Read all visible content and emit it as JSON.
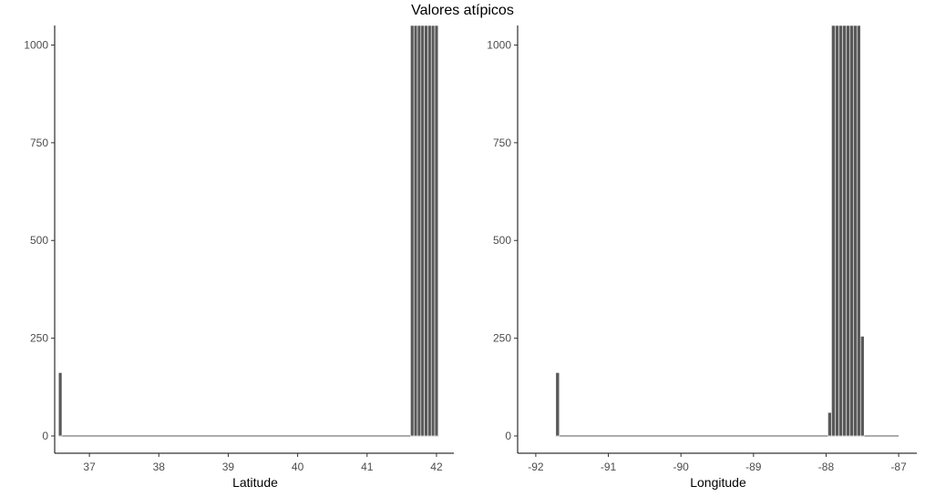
{
  "title": "Valores atípicos",
  "chart_data": [
    {
      "type": "bar",
      "subtype": "histogram",
      "title": "",
      "xlabel": "Latitude",
      "ylabel": "",
      "xlim": [
        36.5,
        42.25
      ],
      "ylim": [
        0,
        1050
      ],
      "xticks": [
        37,
        38,
        39,
        40,
        41,
        42
      ],
      "yticks": [
        0,
        250,
        500,
        750,
        1000
      ],
      "bin_width": 0.05,
      "bar_color": "#595959",
      "grid": false,
      "bins": [
        {
          "x": 36.58,
          "count": 162
        },
        {
          "x": 41.65,
          "count": 1050
        },
        {
          "x": 41.7,
          "count": 1050
        },
        {
          "x": 41.75,
          "count": 1050
        },
        {
          "x": 41.8,
          "count": 1050
        },
        {
          "x": 41.85,
          "count": 1050
        },
        {
          "x": 41.9,
          "count": 1050
        },
        {
          "x": 41.95,
          "count": 1050
        },
        {
          "x": 42.0,
          "count": 1050
        }
      ]
    },
    {
      "type": "bar",
      "subtype": "histogram",
      "title": "",
      "xlabel": "Longitude",
      "ylabel": "",
      "xlim": [
        -92.25,
        -86.75
      ],
      "ylim": [
        0,
        1050
      ],
      "xticks": [
        -92,
        -91,
        -90,
        -89,
        -88,
        -87
      ],
      "yticks": [
        0,
        250,
        500,
        750,
        1000
      ],
      "bin_width": 0.05,
      "bar_color": "#595959",
      "grid": false,
      "bins": [
        {
          "x": -91.7,
          "count": 162
        },
        {
          "x": -87.95,
          "count": 60
        },
        {
          "x": -87.9,
          "count": 1050
        },
        {
          "x": -87.85,
          "count": 1050
        },
        {
          "x": -87.8,
          "count": 1050
        },
        {
          "x": -87.75,
          "count": 1050
        },
        {
          "x": -87.7,
          "count": 1050
        },
        {
          "x": -87.65,
          "count": 1050
        },
        {
          "x": -87.6,
          "count": 1050
        },
        {
          "x": -87.55,
          "count": 1050
        },
        {
          "x": -87.5,
          "count": 255
        }
      ]
    }
  ]
}
